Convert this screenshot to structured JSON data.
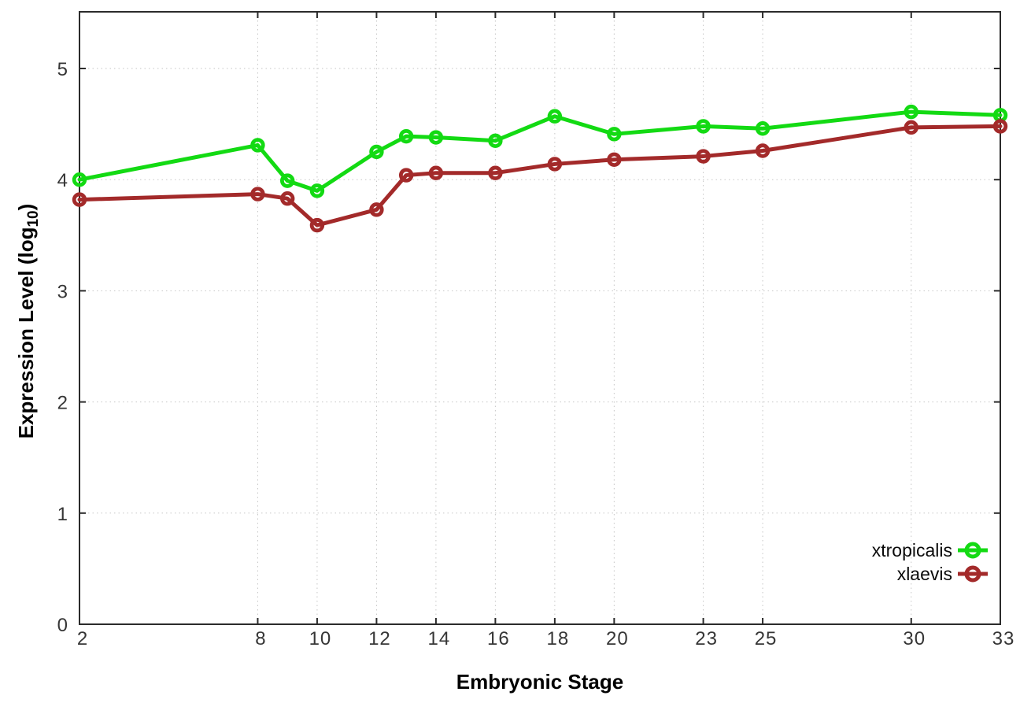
{
  "chart_data": {
    "type": "line",
    "title": "",
    "xlabel": "Embryonic Stage",
    "ylabel": "Expression Level (log10)",
    "xlim": [
      2,
      33
    ],
    "ylim": [
      0,
      5.51
    ],
    "x_ticks": [
      2,
      8,
      10,
      12,
      14,
      16,
      18,
      20,
      23,
      25,
      30,
      33
    ],
    "y_ticks": [
      0,
      1,
      2,
      3,
      4,
      5
    ],
    "grid": true,
    "legend_position": "bottom-right",
    "x": [
      2,
      8,
      9,
      10,
      12,
      13,
      14,
      16,
      18,
      20,
      23,
      25,
      30,
      33
    ],
    "series": [
      {
        "name": "xtropicalis",
        "color": "#13da13",
        "values": [
          4.0,
          4.31,
          3.99,
          3.9,
          4.25,
          4.39,
          4.38,
          4.35,
          4.57,
          4.41,
          4.48,
          4.46,
          4.61,
          4.58
        ]
      },
      {
        "name": "xlaevis",
        "color": "#a32a2a",
        "values": [
          3.82,
          3.87,
          3.83,
          3.59,
          3.73,
          4.04,
          4.06,
          4.06,
          4.14,
          4.18,
          4.21,
          4.26,
          4.47,
          4.48
        ]
      }
    ]
  },
  "labels": {
    "xlabel": "Embryonic Stage",
    "ylabel_main": "Expression Level (log",
    "ylabel_sub": "10",
    "ylabel_suffix": ")"
  },
  "style": {
    "axis_color": "#2b2b2b",
    "grid_color": "#c6c6c6",
    "tick_text_color": "#363636"
  }
}
